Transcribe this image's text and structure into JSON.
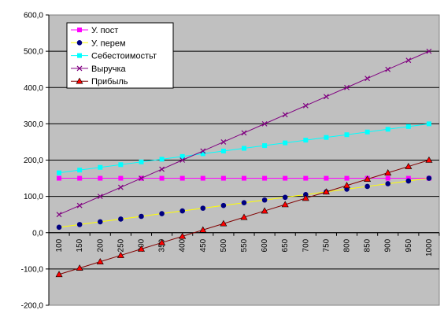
{
  "chart_data": {
    "type": "line",
    "x": [
      100,
      150,
      200,
      250,
      300,
      350,
      400,
      450,
      500,
      550,
      600,
      650,
      700,
      750,
      800,
      850,
      900,
      950,
      1000
    ],
    "x_tick_labels": [
      "100",
      "150",
      "200",
      "250",
      "300",
      "350",
      "400",
      "450",
      "500",
      "550",
      "600",
      "650",
      "700",
      "750",
      "800",
      "850",
      "900",
      "950",
      "1000"
    ],
    "y_tick_labels": [
      "-200,0",
      "-100,0",
      "0,0",
      "100,0",
      "200,0",
      "300,0",
      "400,0",
      "500,0",
      "600,0"
    ],
    "y_ticks": [
      -200,
      -100,
      0,
      100,
      200,
      300,
      400,
      500,
      600
    ],
    "ylim": [
      -200,
      600
    ],
    "grid": true,
    "legend_position": "top-left",
    "series": [
      {
        "name": "У. пост",
        "color": "#ff00ff",
        "marker": "square",
        "values": [
          150,
          150,
          150,
          150,
          150,
          150,
          150,
          150,
          150,
          150,
          150,
          150,
          150,
          150,
          150,
          150,
          150,
          150,
          150
        ]
      },
      {
        "name": "У. перем",
        "color": "#ffff00",
        "marker_color": "#000080",
        "marker": "circle",
        "values": [
          15,
          22.5,
          30,
          37.5,
          45,
          52.5,
          60,
          67.5,
          75,
          82.5,
          90,
          97.5,
          105,
          112.5,
          120,
          127.5,
          135,
          142.5,
          150
        ]
      },
      {
        "name": "Себестоимостьт",
        "color": "#00ffff",
        "marker": "square",
        "values": [
          165,
          172.5,
          180,
          187.5,
          195,
          202.5,
          210,
          217.5,
          225,
          232.5,
          240,
          247.5,
          255,
          262.5,
          270,
          277.5,
          285,
          292.5,
          300
        ]
      },
      {
        "name": "Выручка",
        "color": "#800080",
        "marker": "x",
        "values": [
          50,
          75,
          100,
          125,
          150,
          175,
          200,
          225,
          250,
          275,
          300,
          325,
          350,
          375,
          400,
          425,
          450,
          475,
          500
        ]
      },
      {
        "name": "Прибыль",
        "color": "#800000",
        "marker_color": "#ff0000",
        "marker": "triangle",
        "values": [
          -115,
          -97.5,
          -80,
          -62.5,
          -45,
          -27.5,
          -10,
          7.5,
          25,
          42.5,
          60,
          77.5,
          95,
          112.5,
          130,
          147.5,
          165,
          182.5,
          200
        ]
      }
    ]
  }
}
